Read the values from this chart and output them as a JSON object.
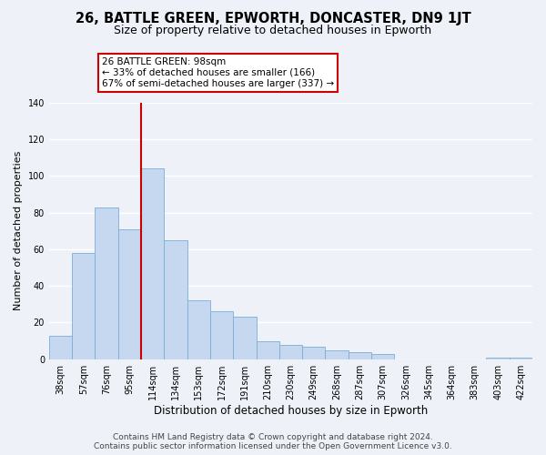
{
  "title": "26, BATTLE GREEN, EPWORTH, DONCASTER, DN9 1JT",
  "subtitle": "Size of property relative to detached houses in Epworth",
  "xlabel": "Distribution of detached houses by size in Epworth",
  "ylabel": "Number of detached properties",
  "bar_labels": [
    "38sqm",
    "57sqm",
    "76sqm",
    "95sqm",
    "114sqm",
    "134sqm",
    "153sqm",
    "172sqm",
    "191sqm",
    "210sqm",
    "230sqm",
    "249sqm",
    "268sqm",
    "287sqm",
    "307sqm",
    "326sqm",
    "345sqm",
    "364sqm",
    "383sqm",
    "403sqm",
    "422sqm"
  ],
  "bar_values": [
    13,
    58,
    83,
    71,
    104,
    65,
    32,
    26,
    23,
    10,
    8,
    7,
    5,
    4,
    3,
    0,
    0,
    0,
    0,
    1,
    1
  ],
  "bar_color": "#c5d8f0",
  "bar_edge_color": "#7aaed6",
  "vline_x": 3.5,
  "vline_color": "#cc0000",
  "annotation_text": "26 BATTLE GREEN: 98sqm\n← 33% of detached houses are smaller (166)\n67% of semi-detached houses are larger (337) →",
  "annotation_box_color": "#ffffff",
  "annotation_box_edge": "#cc0000",
  "ylim": [
    0,
    140
  ],
  "yticks": [
    0,
    20,
    40,
    60,
    80,
    100,
    120,
    140
  ],
  "footnote_line1": "Contains HM Land Registry data © Crown copyright and database right 2024.",
  "footnote_line2": "Contains public sector information licensed under the Open Government Licence v3.0.",
  "background_color": "#eef2f8",
  "plot_background": "#eef2f8",
  "grid_color": "#ffffff",
  "title_fontsize": 10.5,
  "subtitle_fontsize": 9,
  "xlabel_fontsize": 8.5,
  "ylabel_fontsize": 8,
  "tick_fontsize": 7,
  "annotation_fontsize": 7.5,
  "footnote_fontsize": 6.5
}
